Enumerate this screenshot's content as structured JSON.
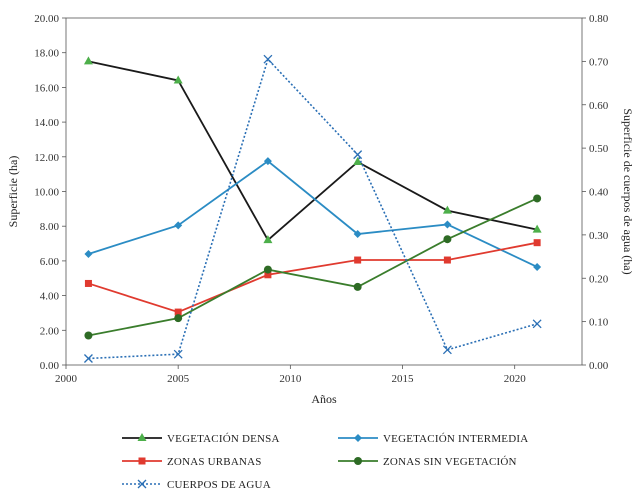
{
  "chart_data": {
    "type": "line",
    "title": "",
    "xlabel": "Años",
    "ylabel": "Superficie (ha)",
    "y2label": "Superficie de cuerpos de agua (ha)",
    "xlim": [
      2000,
      2023
    ],
    "ylim": [
      0,
      20
    ],
    "y2lim": [
      0,
      0.8
    ],
    "x_ticks": [
      2000,
      2005,
      2010,
      2015,
      2020
    ],
    "y_ticks": [
      "0.00",
      "2.00",
      "4.00",
      "6.00",
      "8.00",
      "10.00",
      "12.00",
      "14.00",
      "16.00",
      "18.00",
      "20.00"
    ],
    "y2_ticks": [
      "0.00",
      "0.10",
      "0.20",
      "0.30",
      "0.40",
      "0.50",
      "0.60",
      "0.70",
      "0.80"
    ],
    "grid": false,
    "legend_position": "bottom",
    "series": [
      {
        "name": "VEGETACIÓN DENSA",
        "axis": "left",
        "color": "#1a1a1a",
        "marker": "triangle",
        "marker_color": "#4daf4a",
        "line_style": "solid",
        "x": [
          2001,
          2005,
          2009,
          2013,
          2017,
          2021
        ],
        "values": [
          17.5,
          16.4,
          7.2,
          11.7,
          8.9,
          7.8
        ]
      },
      {
        "name": "VEGETACIÓN INTERMEDIA",
        "axis": "left",
        "color": "#2b8cc4",
        "marker": "diamond",
        "marker_color": "#2b8cc4",
        "line_style": "solid",
        "x": [
          2001,
          2005,
          2009,
          2013,
          2017,
          2021
        ],
        "values": [
          6.4,
          8.05,
          11.75,
          7.55,
          8.1,
          5.65
        ]
      },
      {
        "name": "ZONAS URBANAS",
        "axis": "left",
        "color": "#e03a2f",
        "marker": "square",
        "marker_color": "#e03a2f",
        "line_style": "solid",
        "x": [
          2001,
          2005,
          2009,
          2013,
          2017,
          2021
        ],
        "values": [
          4.7,
          3.05,
          5.2,
          6.05,
          6.05,
          7.05
        ]
      },
      {
        "name": "ZONAS SIN VEGETACIÓN",
        "axis": "left",
        "color": "#3a7d2c",
        "marker": "circle",
        "marker_color": "#2e6b25",
        "line_style": "solid",
        "x": [
          2001,
          2005,
          2009,
          2013,
          2017,
          2021
        ],
        "values": [
          1.7,
          2.7,
          5.5,
          4.5,
          7.25,
          9.6
        ]
      },
      {
        "name": "CUERPOS DE AGUA",
        "axis": "right",
        "color": "#2a6fb5",
        "marker": "x",
        "marker_color": "#2a6fb5",
        "line_style": "dotted",
        "x": [
          2001,
          2005,
          2009,
          2013,
          2017,
          2021
        ],
        "values": [
          0.015,
          0.025,
          0.705,
          0.485,
          0.035,
          0.095
        ]
      }
    ]
  }
}
